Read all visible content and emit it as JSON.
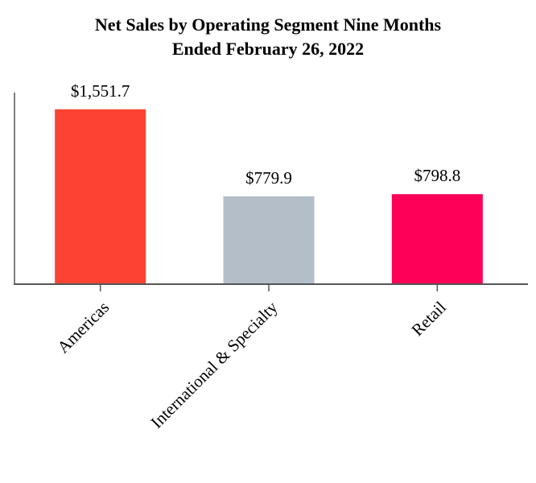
{
  "chart_data": {
    "type": "bar",
    "title": "Net Sales by Operating Segment Nine Months Ended February 26, 2022",
    "categories": [
      "Americas",
      "International & Specialty",
      "Retail"
    ],
    "values": [
      1551.7,
      779.9,
      798.8
    ],
    "value_labels": [
      "$1,551.7",
      "$779.9",
      "$798.8"
    ],
    "colors": [
      "#fc4232",
      "#b4bec8",
      "#ff0059"
    ],
    "ylim": [
      0,
      1700
    ]
  }
}
